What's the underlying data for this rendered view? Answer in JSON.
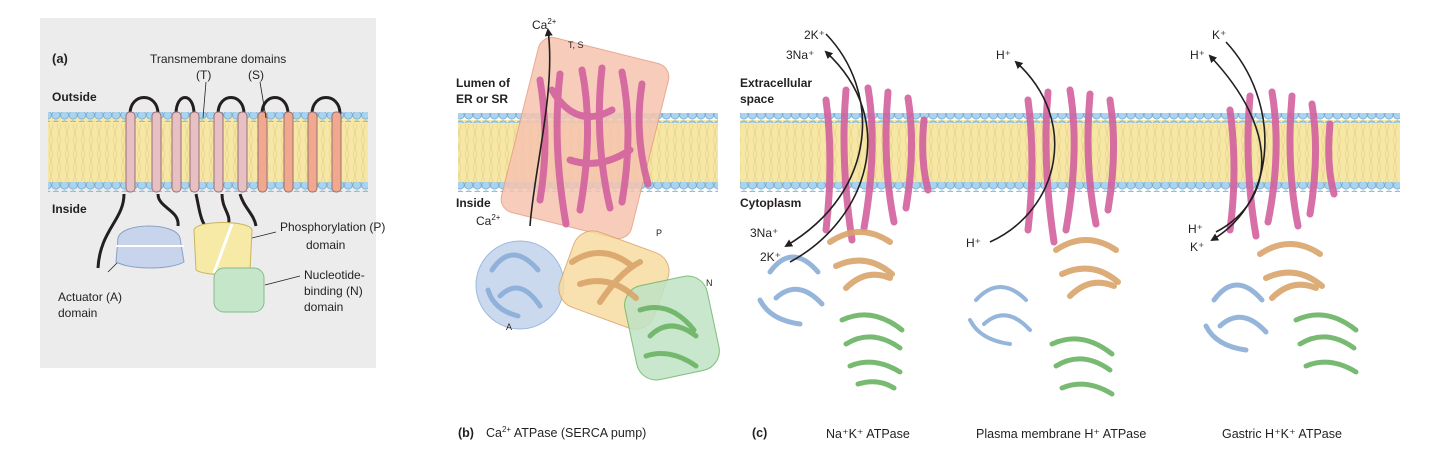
{
  "panel_a": {
    "label": "(a)",
    "outside": "Outside",
    "inside": "Inside",
    "tm_domains": "Transmembrane domains",
    "tm_t": "(T)",
    "tm_s": "(S)",
    "phos_line1": "Phosphorylation (P)",
    "phos_line2": "domain",
    "nuc_line1": "Nucleotide-",
    "nuc_line2": "binding (N)",
    "nuc_line3": "domain",
    "act_line1": "Actuator (A)",
    "act_line2": "domain"
  },
  "panel_b": {
    "label": "(b)",
    "caption_ion": "Ca",
    "caption_ion_charge": "2+",
    "caption_rest": "ATPase (SERCA pump)",
    "lumen_line1": "Lumen of",
    "lumen_line2": "ER or SR",
    "inside": "Inside",
    "ca_top": "Ca",
    "ca_top_charge": "2+",
    "ca_bottom": "Ca",
    "ca_bottom_charge": "2+",
    "dom_ts": "T, S",
    "dom_p": "P",
    "dom_n": "N",
    "dom_a": "A"
  },
  "panel_c": {
    "label": "(c)",
    "extracellular_line1": "Extracellular",
    "extracellular_line2": "space",
    "cytoplasm": "Cytoplasm",
    "nak": {
      "caption": "Na⁺K⁺ ATPase",
      "out_k": "2K⁺",
      "out_na": "3Na⁺",
      "in_na": "3Na⁺",
      "in_k": "2K⁺"
    },
    "ph": {
      "caption": "Plasma membrane H⁺ ATPase",
      "out_h": "H⁺",
      "in_h": "H⁺"
    },
    "hk": {
      "caption": "Gastric H⁺K⁺ ATPase",
      "out_k": "K⁺",
      "out_h": "H⁺",
      "in_h": "H⁺",
      "in_k": "K⁺"
    }
  },
  "colors": {
    "membrane_core": "#f6e7a6",
    "lipid_head": "#a9d3ee",
    "tm_helix": "#e7c0c3",
    "tm_helix_s": "#f0a98f",
    "actuator": "#c7d4ec",
    "phosphorylation": "#f6eaa6",
    "nucleotide": "#c6e6c9",
    "protein_tm": "#d2619e",
    "protein_p": "#d9a46b",
    "protein_n": "#6bb364",
    "protein_a": "#8aaed8",
    "box_tm": "#f6c4b0",
    "box_p": "#f7dca0",
    "box_n": "#bfe3c4",
    "box_a": "#c3d3ec"
  }
}
